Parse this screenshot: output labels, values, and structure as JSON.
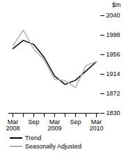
{
  "chart_data": {
    "type": "line",
    "x": [
      "Mar 2008",
      null,
      "Sep",
      null,
      "Mar 2009",
      null,
      "Sep",
      null,
      "Mar 2010"
    ],
    "y_label": "$m",
    "series": [
      {
        "name": "Trend",
        "color": "#000000",
        "values": [
          1969,
          1987,
          1978,
          1950,
          1910,
          1892,
          1901,
          1921,
          1941
        ]
      },
      {
        "name": "Seasonally Adjusted",
        "color": "#b0b0b0",
        "values": [
          1975,
          2009,
          1968,
          1945,
          1903,
          1900,
          1885,
          1933,
          1941
        ]
      }
    ],
    "ylim": [
      1830,
      2040
    ],
    "yticks": [
      1830,
      1872,
      1914,
      1956,
      1998,
      2040
    ],
    "legend": "bottom",
    "grid": false
  }
}
